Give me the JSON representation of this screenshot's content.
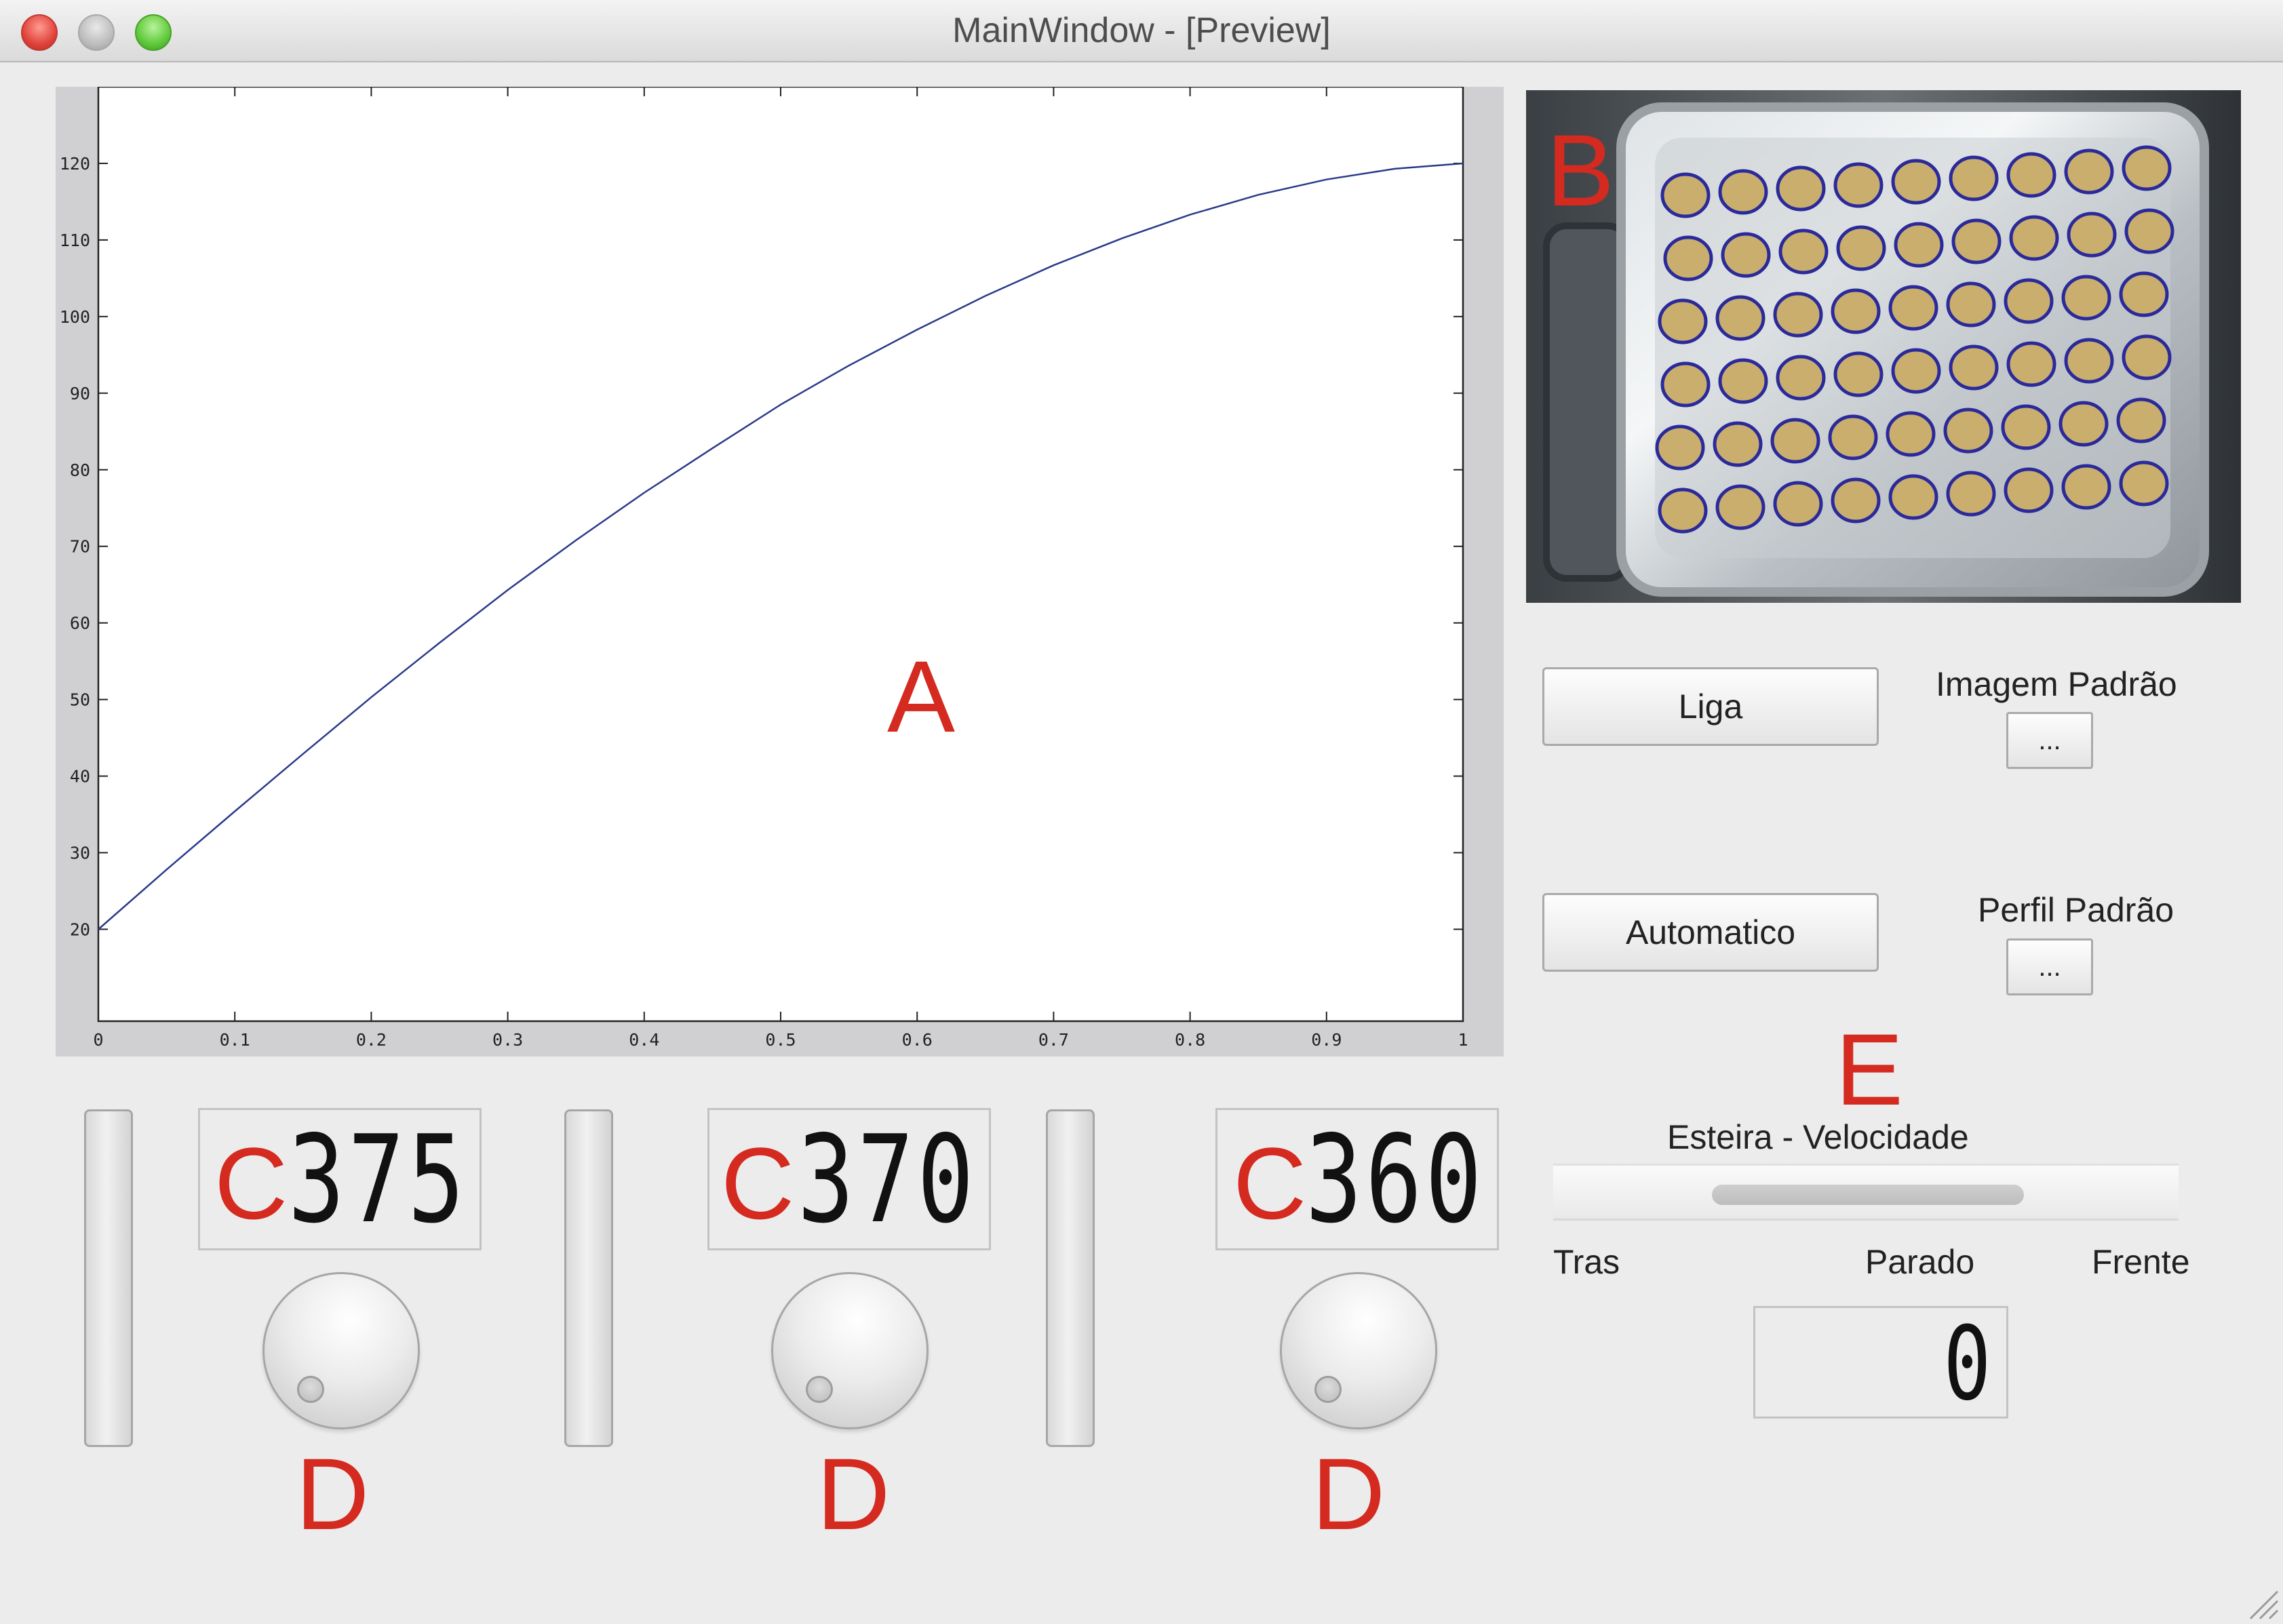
{
  "window": {
    "title": "MainWindow - [Preview]"
  },
  "chart_data": {
    "type": "line",
    "x": [
      0,
      0.05,
      0.1,
      0.15,
      0.2,
      0.25,
      0.3,
      0.35,
      0.4,
      0.45,
      0.5,
      0.55,
      0.6,
      0.65,
      0.7,
      0.75,
      0.8,
      0.85,
      0.9,
      0.95,
      1.0
    ],
    "series": [
      {
        "values": [
          20,
          27.8,
          35.4,
          42.9,
          50.3,
          57.4,
          64.3,
          70.8,
          77.0,
          82.8,
          88.5,
          93.6,
          98.3,
          102.7,
          106.7,
          110.2,
          113.3,
          115.9,
          117.9,
          119.3,
          120
        ]
      }
    ],
    "color": "#2a3a8a",
    "xlim": [
      0,
      1
    ],
    "ylim": [
      8,
      130
    ],
    "xticks": [
      "0",
      "0.1",
      "0.2",
      "0.3",
      "0.4",
      "0.5",
      "0.6",
      "0.7",
      "0.8",
      "0.9",
      "1"
    ],
    "yticks": [
      "20",
      "30",
      "40",
      "50",
      "60",
      "70",
      "80",
      "90",
      "100",
      "110",
      "120"
    ],
    "grid": false
  },
  "controls": {
    "power_button": "Liga",
    "auto_button": "Automatico",
    "default_image_label": "Imagem Padrão",
    "default_image_button": "...",
    "default_profile_label": "Perfil Padrão",
    "default_profile_button": "...",
    "conveyor_title": "Esteira - Velocidade",
    "conveyor_back": "Tras",
    "conveyor_stop": "Parado",
    "conveyor_forward": "Frente",
    "conveyor_value": "0"
  },
  "heaters": [
    {
      "value": "375"
    },
    {
      "value": "370"
    },
    {
      "value": "360"
    }
  ],
  "annotations": {
    "plot": "A",
    "camera": "B",
    "displays": [
      "C",
      "C",
      "C"
    ],
    "dials": [
      "D",
      "D",
      "D"
    ],
    "conveyor": "E"
  },
  "colors": {
    "annotation": "#d42a1f",
    "plot_line": "#2a3a8a"
  },
  "icons": {
    "close": "close-icon",
    "minimize": "minimize-icon",
    "zoom": "zoom-icon",
    "resize": "resize-grip-icon"
  }
}
